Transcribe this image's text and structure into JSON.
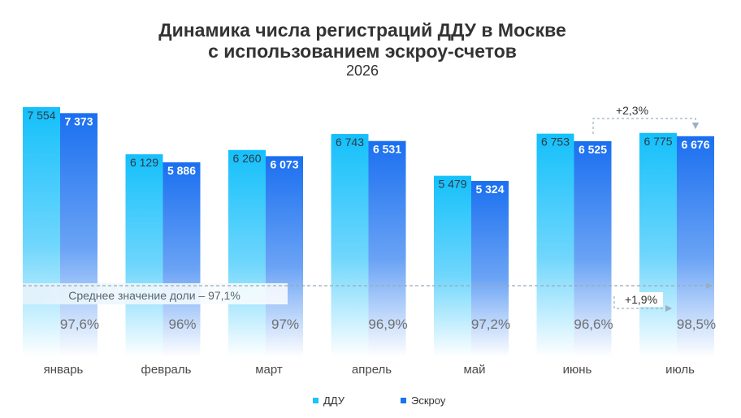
{
  "chart_data": {
    "type": "bar",
    "title": "Динамика числа регистраций ДДУ в Москве",
    "title_line2": "с использованием эскроу-счетов",
    "subtitle": "2026",
    "categories": [
      "январь",
      "февраль",
      "март",
      "апрель",
      "май",
      "июнь",
      "июль"
    ],
    "series": [
      {
        "name": "ДДУ",
        "values": [
          7554,
          6129,
          6260,
          6743,
          5479,
          6753,
          6775
        ],
        "labels": [
          "7 554",
          "6 129",
          "6 260",
          "6 743",
          "5 479",
          "6 753",
          "6 775"
        ],
        "color": "#19c3fb"
      },
      {
        "name": "Эскроу",
        "values": [
          7373,
          5886,
          6073,
          6531,
          5324,
          6525,
          6676
        ],
        "labels": [
          "7 373",
          "5 886",
          "6 073",
          "6 531",
          "5 324",
          "6 525",
          "6 676"
        ],
        "color": "#1a73f0"
      }
    ],
    "share_labels": [
      "97,6%",
      "96%",
      "97%",
      "96,9%",
      "97,2%",
      "96,6%",
      "98,5%"
    ],
    "average_label": "Среднее значение доли – 97,1%",
    "annotations": [
      "+2,3%",
      "+1,9%"
    ],
    "ylim": [
      0,
      8000
    ],
    "grid": false,
    "legend_position": "bottom"
  }
}
